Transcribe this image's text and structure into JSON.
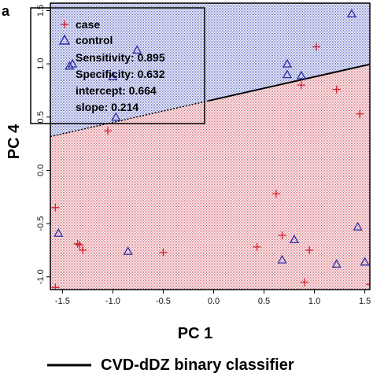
{
  "panel_label": "a",
  "caption": "CVD-dDZ binary classifier",
  "colors": {
    "case_region": "#d9707a",
    "control_region": "#6a74c6",
    "case_marker": "#d21e2a",
    "control_marker": "#2e2ea8",
    "classifier_line": "#000000"
  },
  "chart_data": {
    "type": "scatter",
    "xlabel": "PC 1",
    "ylabel": "PC 4",
    "xlim": [
      -1.62,
      1.55
    ],
    "ylim": [
      -1.12,
      1.57
    ],
    "xticks": [
      "-1.5",
      "-1.0",
      "-0.5",
      "0.0",
      "0.5",
      "1.0",
      "1.5"
    ],
    "yticks": [
      "-1.0",
      "-0.5",
      "0.0",
      "0.5",
      "1.0",
      "1.5"
    ],
    "xtick_values": [
      -1.5,
      -1.0,
      -0.5,
      0.0,
      0.5,
      1.0,
      1.5
    ],
    "ytick_values": [
      -1.0,
      -0.5,
      0.0,
      0.5,
      1.0,
      1.5
    ],
    "legend_position": "top-left",
    "grid": false,
    "classifier": {
      "intercept": 0.664,
      "slope": 0.214
    },
    "legend": {
      "entries": [
        "case",
        "control"
      ],
      "stats": [
        "Sensitivity: 0.895",
        "Specificity: 0.632",
        "intercept: 0.664",
        "slope: 0.214"
      ]
    },
    "series": [
      {
        "name": "case",
        "marker": "plus",
        "points": [
          [
            -1.57,
            -0.35
          ],
          [
            -1.57,
            -1.1
          ],
          [
            -1.35,
            -0.69
          ],
          [
            -1.33,
            -0.7
          ],
          [
            -1.3,
            -0.75
          ],
          [
            -1.05,
            0.37
          ],
          [
            -0.5,
            -0.77
          ],
          [
            0.43,
            -0.72
          ],
          [
            0.62,
            -0.22
          ],
          [
            0.68,
            -0.61
          ],
          [
            0.87,
            0.8
          ],
          [
            0.9,
            -1.05
          ],
          [
            0.95,
            -0.75
          ],
          [
            1.02,
            1.16
          ],
          [
            1.22,
            0.76
          ],
          [
            1.45,
            0.53
          ],
          [
            1.55,
            -1.07
          ]
        ]
      },
      {
        "name": "control",
        "marker": "triangle",
        "points": [
          [
            -1.43,
            0.98
          ],
          [
            -1.4,
            1.0
          ],
          [
            -1.0,
            0.88
          ],
          [
            -0.97,
            0.5
          ],
          [
            -0.76,
            1.13
          ],
          [
            -1.54,
            -0.59
          ],
          [
            -0.85,
            -0.76
          ],
          [
            0.73,
            1.0
          ],
          [
            0.73,
            0.9
          ],
          [
            0.87,
            0.89
          ],
          [
            0.68,
            -0.84
          ],
          [
            0.8,
            -0.65
          ],
          [
            1.22,
            -0.88
          ],
          [
            1.37,
            1.47
          ],
          [
            1.43,
            -0.53
          ],
          [
            1.5,
            -0.86
          ]
        ]
      }
    ]
  }
}
